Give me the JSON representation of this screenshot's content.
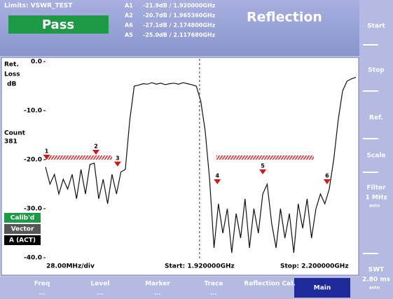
{
  "header": {
    "limits": "Limits: VSWR_TEST",
    "status": "Pass",
    "title": "Reflection",
    "markers": [
      {
        "name": "A1",
        "reading": "-21.9dB / 1.920000GHz"
      },
      {
        "name": "A2",
        "reading": "-20.7dB / 1.965360GHz"
      },
      {
        "name": "A6",
        "reading": "-27.1dB / 2.174800GHz"
      },
      {
        "name": "A5",
        "reading": "-25.0dB / 2.117680GHz"
      }
    ]
  },
  "plot": {
    "y_title": [
      "Ret.",
      "Loss",
      "dB"
    ],
    "count_label": "Count",
    "count": 381,
    "ylim": [
      -40,
      0
    ],
    "yticks": [
      {
        "value": 0,
        "label": "0.0"
      },
      {
        "value": -10,
        "label": "-10.0"
      },
      {
        "value": -20,
        "label": "-20.0"
      },
      {
        "value": -30,
        "label": "-30.0"
      },
      {
        "value": -40,
        "label": "-40.0"
      }
    ],
    "xlim": [
      1920,
      2200
    ],
    "trace": {
      "color": "#111111",
      "x": [
        1920,
        1924,
        1928,
        1932,
        1936,
        1940,
        1944,
        1948,
        1952,
        1956,
        1960,
        1964,
        1968,
        1972,
        1976,
        1980,
        1984,
        1988,
        1992,
        1996,
        2000,
        2004,
        2008,
        2012,
        2016,
        2020,
        2024,
        2028,
        2032,
        2036,
        2040,
        2044,
        2048,
        2052,
        2056,
        2060,
        2064,
        2068,
        2072,
        2076,
        2080,
        2084,
        2088,
        2092,
        2096,
        2100,
        2104,
        2108,
        2112,
        2116,
        2120,
        2124,
        2128,
        2132,
        2136,
        2140,
        2144,
        2148,
        2152,
        2156,
        2160,
        2164,
        2168,
        2172,
        2176,
        2180,
        2184,
        2188,
        2192,
        2196,
        2200
      ],
      "values": [
        -21.5,
        -25,
        -23,
        -27,
        -24,
        -26,
        -23,
        -28,
        -22,
        -27,
        -21,
        -20.7,
        -28,
        -24,
        -29,
        -23,
        -27,
        -22.5,
        -22,
        -12,
        -5,
        -4.8,
        -4.5,
        -4.6,
        -4.3,
        -4.6,
        -4.4,
        -4.7,
        -4.5,
        -4.4,
        -4.6,
        -4.3,
        -4.5,
        -4.7,
        -5,
        -8,
        -14,
        -24,
        -38,
        -29,
        -35,
        -30,
        -39,
        -31,
        -36,
        -28,
        -38,
        -30,
        -35,
        -27,
        -25,
        -33,
        -38,
        -30,
        -36,
        -31,
        -39,
        -29,
        -34,
        -28,
        -36,
        -30,
        -27,
        -29,
        -26,
        -20,
        -12,
        -6,
        -4,
        -3.5,
        -3.2
      ]
    },
    "limit_lines": [
      {
        "x": [
          1920,
          1980
        ],
        "y": -20
      },
      {
        "x": [
          2074,
          2162
        ],
        "y": -20
      }
    ],
    "limit_color": "#e03030",
    "cursor_x": 2059,
    "markers": [
      {
        "label": "1",
        "x": 1921,
        "y": -20
      },
      {
        "label": "2",
        "x": 1965.5,
        "y": -19
      },
      {
        "label": "3",
        "x": 1985,
        "y": -21.4
      },
      {
        "label": "4",
        "x": 2075,
        "y": -25
      },
      {
        "label": "5",
        "x": 2116,
        "y": -23
      },
      {
        "label": "6",
        "x": 2174,
        "y": -25
      }
    ],
    "marker_color": "#d01818",
    "status": [
      "Calib'd",
      "Vector",
      "A (ACT)"
    ],
    "footer": {
      "scale": "28.00MHz/div",
      "start": "Start: 1.920000GHz",
      "stop": "Stop: 2.200000GHz"
    }
  },
  "side_buttons": [
    {
      "label": "Start"
    },
    {
      "label": "Stop"
    },
    {
      "label": "Ref."
    },
    {
      "label": "Scale"
    },
    {
      "label": "Filter",
      "value": "1 MHz",
      "mode": "auto"
    },
    {
      "label": "SWT",
      "value": "2.80 ms",
      "mode": "auto"
    }
  ],
  "bottom_buttons": [
    {
      "label": "Freq",
      "sub": "..."
    },
    {
      "label": "Level",
      "sub": "..."
    },
    {
      "label": "Marker",
      "sub": "..."
    },
    {
      "label": "Trace",
      "sub": "..."
    },
    {
      "label": "Reflection Cal."
    },
    {
      "label": "Main"
    }
  ]
}
